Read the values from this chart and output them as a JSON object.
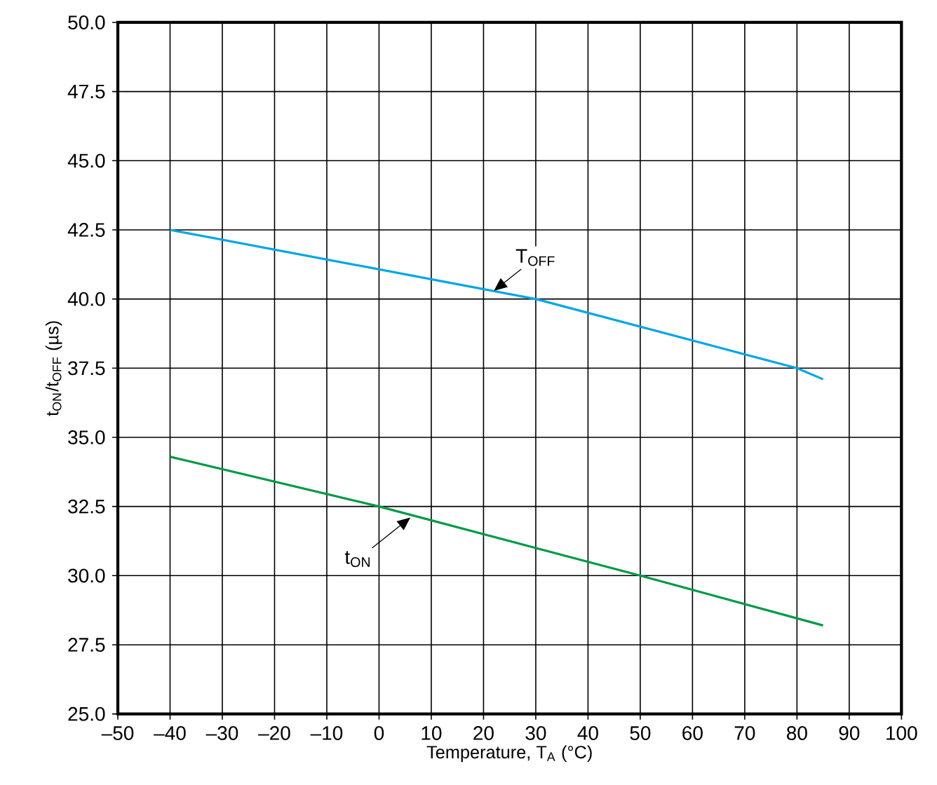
{
  "chart_data": {
    "type": "line",
    "xlabel": "Temperature, T$_{A}$ (°C)",
    "ylabel": "t$_{ON}$/t$_{OFF}$ (µs)",
    "xlim": [
      -50,
      100
    ],
    "xticks": [
      {
        "value": -50,
        "label": "–50"
      },
      {
        "value": -40,
        "label": "–40"
      },
      {
        "value": -30,
        "label": "–30"
      },
      {
        "value": -20,
        "label": "–20"
      },
      {
        "value": -10,
        "label": "–10"
      },
      0,
      10,
      20,
      30,
      40,
      50,
      60,
      70,
      80,
      90,
      100
    ],
    "ylim": [
      25,
      50
    ],
    "yticks": [
      {
        "value": 25,
        "label": "25.0"
      },
      {
        "value": 27.5,
        "label": "27.5"
      },
      {
        "value": 30,
        "label": "30.0"
      },
      {
        "value": 32.5,
        "label": "32.5"
      },
      {
        "value": 35,
        "label": "35.0"
      },
      {
        "value": 37.5,
        "label": "37.5"
      },
      {
        "value": 40,
        "label": "40.0"
      },
      {
        "value": 42.5,
        "label": "42.5"
      },
      {
        "value": 45,
        "label": "45.0"
      },
      {
        "value": 47.5,
        "label": "47.5"
      },
      {
        "value": 50,
        "label": "50.0"
      }
    ],
    "grid": true,
    "series": [
      {
        "color": "#00a6e6",
        "x": [
          -40,
          30,
          80,
          85
        ],
        "values": [
          42.5,
          40.0,
          37.5,
          37.1
        ]
      },
      {
        "color": "#009a44",
        "x": [
          -40,
          0,
          50,
          85
        ],
        "values": [
          34.3,
          32.5,
          30.0,
          28.2
        ]
      }
    ],
    "annotations": [
      {
        "text": "T$_{OFF}$",
        "x": 22,
        "y": 40.3
      },
      {
        "text": "t$_{ON}$",
        "x": 6,
        "y": 32.1
      }
    ]
  }
}
